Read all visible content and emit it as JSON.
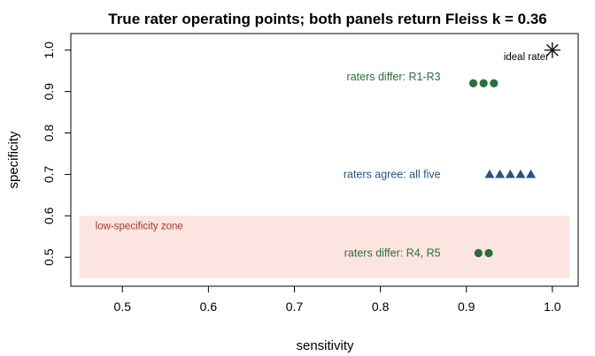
{
  "chart_data": {
    "type": "scatter",
    "title": "True rater operating points; both panels return Fleiss k = 0.36",
    "xlabel": "sensitivity",
    "ylabel": "specificity",
    "xlim": [
      0.44,
      1.03
    ],
    "ylim": [
      0.43,
      1.04
    ],
    "x_ticks": [
      0.5,
      0.6,
      0.7,
      0.8,
      0.9,
      1.0
    ],
    "x_tick_labels": [
      "0.5",
      "0.6",
      "0.7",
      "0.8",
      "0.9",
      "1.0"
    ],
    "y_ticks": [
      0.5,
      0.6,
      0.7,
      0.8,
      0.9,
      1.0
    ],
    "y_tick_labels": [
      "0.5",
      "0.6",
      "0.7",
      "0.8",
      "0.9",
      "1.0"
    ],
    "grid": false,
    "region": {
      "label": "low-specificity zone",
      "x": [
        0.45,
        1.02
      ],
      "y": [
        0.45,
        0.6
      ],
      "color": "#fce4e0",
      "label_color": "#a33a2e"
    },
    "series": [
      {
        "marker": "circle",
        "color": "#2a6e3a",
        "points": [
          [
            0.908,
            0.92
          ],
          [
            0.92,
            0.92
          ],
          [
            0.932,
            0.92
          ]
        ]
      },
      {
        "marker": "triangle",
        "color": "#2a5480",
        "points": [
          [
            0.927,
            0.7
          ],
          [
            0.939,
            0.7
          ],
          [
            0.951,
            0.7
          ],
          [
            0.963,
            0.7
          ],
          [
            0.975,
            0.7
          ]
        ]
      },
      {
        "marker": "circle",
        "color": "#2a6e3a",
        "points": [
          [
            0.914,
            0.51
          ],
          [
            0.926,
            0.51
          ]
        ]
      },
      {
        "marker": "asterisk",
        "color": "#000000",
        "points": [
          [
            1.0,
            1.0
          ]
        ]
      }
    ],
    "annotations": [
      {
        "text": "raters differ: R1-R3",
        "x": 0.87,
        "y": 0.935,
        "anchor": "end",
        "color": "#2a6e3a"
      },
      {
        "text": "raters agree: all five",
        "x": 0.87,
        "y": 0.7,
        "anchor": "end",
        "color": "#2a5480"
      },
      {
        "text": "raters differ: R4, R5",
        "x": 0.87,
        "y": 0.51,
        "anchor": "end",
        "color": "#2a6e3a"
      },
      {
        "text": "ideal rater",
        "x": 0.996,
        "y": 0.985,
        "anchor": "end",
        "color": "#000000"
      }
    ]
  }
}
